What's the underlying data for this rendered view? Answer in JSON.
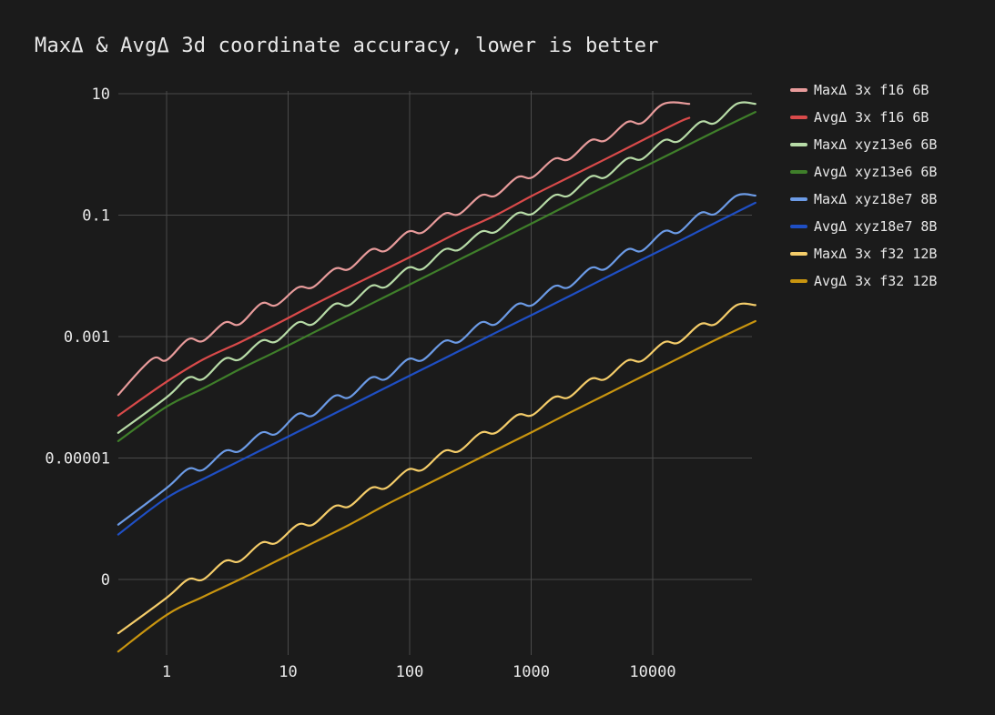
{
  "chart_data": {
    "type": "line",
    "title": "MaxΔ & AvgΔ 3d coordinate accuracy, lower is better",
    "xlabel": "",
    "ylabel": "",
    "x_scale": "log",
    "y_scale": "log",
    "xlim": [
      0.4,
      70000
    ],
    "ylim": [
      1e-08,
      10
    ],
    "x_ticks": [
      {
        "value": 1,
        "label": "1"
      },
      {
        "value": 10,
        "label": "10"
      },
      {
        "value": 100,
        "label": "100"
      },
      {
        "value": 1000,
        "label": "1000"
      },
      {
        "value": 10000,
        "label": "10000"
      }
    ],
    "y_ticks": [
      {
        "value": 10,
        "label": "10"
      },
      {
        "value": 0.1,
        "label": "0.1"
      },
      {
        "value": 0.001,
        "label": "0.001"
      },
      {
        "value": 1e-05,
        "label": "0.00001"
      },
      {
        "value": 1e-07,
        "label": "0"
      }
    ],
    "grid": true,
    "legend_position": "right",
    "series": [
      {
        "name": "MaxΔ 3x f16  6B",
        "color": "#e89b9b",
        "points": [
          [
            0.4,
            0.00011
          ],
          [
            0.75,
            0.00042
          ],
          [
            1,
            0.00041
          ],
          [
            1.5,
            0.0009
          ],
          [
            2,
            0.00085
          ],
          [
            3,
            0.0017
          ],
          [
            4,
            0.0016
          ],
          [
            6,
            0.0035
          ],
          [
            8,
            0.0033
          ],
          [
            12,
            0.0064
          ],
          [
            16,
            0.0065
          ],
          [
            24,
            0.013
          ],
          [
            32,
            0.013
          ],
          [
            48,
            0.027
          ],
          [
            64,
            0.026
          ],
          [
            96,
            0.053
          ],
          [
            128,
            0.052
          ],
          [
            192,
            0.105
          ],
          [
            256,
            0.104
          ],
          [
            384,
            0.21
          ],
          [
            512,
            0.21
          ],
          [
            768,
            0.42
          ],
          [
            1024,
            0.42
          ],
          [
            1536,
            0.84
          ],
          [
            2048,
            0.83
          ],
          [
            3072,
            1.7
          ],
          [
            4096,
            1.7
          ],
          [
            6144,
            3.4
          ],
          [
            8192,
            3.3
          ],
          [
            12288,
            6.8
          ],
          [
            20000,
            6.8
          ]
        ]
      },
      {
        "name": "AvgΔ 3x f16  6B",
        "color": "#d94a4a",
        "points": [
          [
            0.4,
            5e-05
          ],
          [
            1,
            0.00018
          ],
          [
            2,
            0.00042
          ],
          [
            4,
            0.0008
          ],
          [
            8,
            0.0016
          ],
          [
            16,
            0.0033
          ],
          [
            32,
            0.0066
          ],
          [
            64,
            0.013
          ],
          [
            128,
            0.026
          ],
          [
            256,
            0.053
          ],
          [
            512,
            0.1
          ],
          [
            1024,
            0.21
          ],
          [
            2048,
            0.42
          ],
          [
            4096,
            0.84
          ],
          [
            8192,
            1.7
          ],
          [
            16384,
            3.4
          ],
          [
            20000,
            4
          ]
        ]
      },
      {
        "name": "MaxΔ xyz13e6 6B",
        "color": "#b7dba7",
        "points": [
          [
            0.4,
            2.6e-05
          ],
          [
            1,
            0.0001
          ],
          [
            1.5,
            0.00021
          ],
          [
            2,
            0.0002
          ],
          [
            3,
            0.00043
          ],
          [
            4,
            0.00042
          ],
          [
            6,
            0.00085
          ],
          [
            8,
            0.00083
          ],
          [
            12,
            0.0017
          ],
          [
            16,
            0.0016
          ],
          [
            24,
            0.0034
          ],
          [
            32,
            0.0033
          ],
          [
            48,
            0.0068
          ],
          [
            64,
            0.0066
          ],
          [
            96,
            0.0135
          ],
          [
            128,
            0.013
          ],
          [
            192,
            0.027
          ],
          [
            256,
            0.027
          ],
          [
            384,
            0.053
          ],
          [
            512,
            0.053
          ],
          [
            768,
            0.107
          ],
          [
            1024,
            0.105
          ],
          [
            1536,
            0.21
          ],
          [
            2048,
            0.21
          ],
          [
            3072,
            0.43
          ],
          [
            4096,
            0.42
          ],
          [
            6144,
            0.85
          ],
          [
            8192,
            0.84
          ],
          [
            12288,
            1.7
          ],
          [
            16384,
            1.65
          ],
          [
            24576,
            3.4
          ],
          [
            32768,
            3.3
          ],
          [
            49152,
            6.8
          ],
          [
            70000,
            6.8
          ]
        ]
      },
      {
        "name": "AvgΔ xyz13e6 6B",
        "color": "#3f7f2a",
        "points": [
          [
            0.4,
            1.9e-05
          ],
          [
            1,
            7e-05
          ],
          [
            2,
            0.00014
          ],
          [
            4,
            0.00029
          ],
          [
            8,
            0.00057
          ],
          [
            16,
            0.00115
          ],
          [
            32,
            0.0023
          ],
          [
            64,
            0.0046
          ],
          [
            128,
            0.0092
          ],
          [
            256,
            0.0185
          ],
          [
            512,
            0.037
          ],
          [
            1024,
            0.074
          ],
          [
            2048,
            0.15
          ],
          [
            4096,
            0.3
          ],
          [
            8192,
            0.6
          ],
          [
            16384,
            1.2
          ],
          [
            32768,
            2.4
          ],
          [
            70000,
            5
          ]
        ]
      },
      {
        "name": "MaxΔ xyz18e7 8B",
        "color": "#6c9be6",
        "points": [
          [
            0.4,
            8e-07
          ],
          [
            1,
            3.2e-06
          ],
          [
            1.5,
            6.6e-06
          ],
          [
            2,
            6.4e-06
          ],
          [
            3,
            1.3e-05
          ],
          [
            4,
            1.3e-05
          ],
          [
            6,
            2.6e-05
          ],
          [
            8,
            2.5e-05
          ],
          [
            12,
            5.3e-05
          ],
          [
            16,
            5e-05
          ],
          [
            24,
            0.000105
          ],
          [
            32,
            0.0001
          ],
          [
            48,
            0.00021
          ],
          [
            64,
            0.0002
          ],
          [
            96,
            0.00042
          ],
          [
            128,
            0.00041
          ],
          [
            192,
            0.00084
          ],
          [
            256,
            0.00082
          ],
          [
            384,
            0.0017
          ],
          [
            512,
            0.0016
          ],
          [
            768,
            0.0034
          ],
          [
            1024,
            0.0033
          ],
          [
            1536,
            0.0067
          ],
          [
            2048,
            0.0065
          ],
          [
            3072,
            0.0134
          ],
          [
            4096,
            0.013
          ],
          [
            6144,
            0.027
          ],
          [
            8192,
            0.026
          ],
          [
            12288,
            0.054
          ],
          [
            16384,
            0.052
          ],
          [
            24576,
            0.108
          ],
          [
            32768,
            0.105
          ],
          [
            49152,
            0.21
          ],
          [
            70000,
            0.21
          ]
        ]
      },
      {
        "name": "AvgΔ xyz18e7 8B",
        "color": "#1f4fc4",
        "points": [
          [
            0.4,
            5.5e-07
          ],
          [
            1,
            2.2e-06
          ],
          [
            2,
            4.5e-06
          ],
          [
            4,
            9e-06
          ],
          [
            8,
            1.8e-05
          ],
          [
            16,
            3.6e-05
          ],
          [
            32,
            7.2e-05
          ],
          [
            64,
            0.000145
          ],
          [
            128,
            0.00029
          ],
          [
            256,
            0.00058
          ],
          [
            512,
            0.00116
          ],
          [
            1024,
            0.0023
          ],
          [
            2048,
            0.0046
          ],
          [
            4096,
            0.0093
          ],
          [
            8192,
            0.0186
          ],
          [
            16384,
            0.037
          ],
          [
            32768,
            0.075
          ],
          [
            70000,
            0.16
          ]
        ]
      },
      {
        "name": "MaxΔ 3x f32  12B",
        "color": "#f5cd6a",
        "points": [
          [
            0.4,
            1.3e-08
          ],
          [
            1,
            5e-08
          ],
          [
            1.5,
            1e-07
          ],
          [
            2,
            1e-07
          ],
          [
            3,
            2e-07
          ],
          [
            4,
            2e-07
          ],
          [
            6,
            4e-07
          ],
          [
            8,
            4e-07
          ],
          [
            12,
            8e-07
          ],
          [
            16,
            8e-07
          ],
          [
            24,
            1.6e-06
          ],
          [
            32,
            1.6e-06
          ],
          [
            48,
            3.2e-06
          ],
          [
            64,
            3.2e-06
          ],
          [
            96,
            6.4e-06
          ],
          [
            128,
            6.4e-06
          ],
          [
            192,
            1.3e-05
          ],
          [
            256,
            1.3e-05
          ],
          [
            384,
            2.6e-05
          ],
          [
            512,
            2.6e-05
          ],
          [
            768,
            5.1e-05
          ],
          [
            1024,
            5.1e-05
          ],
          [
            1536,
            0.0001
          ],
          [
            2048,
            0.0001
          ],
          [
            3072,
            0.0002
          ],
          [
            4096,
            0.0002
          ],
          [
            6144,
            0.0004
          ],
          [
            8192,
            0.0004
          ],
          [
            12288,
            0.0008
          ],
          [
            16384,
            0.0008
          ],
          [
            24576,
            0.0016
          ],
          [
            32768,
            0.0016
          ],
          [
            49152,
            0.0033
          ],
          [
            70000,
            0.0033
          ]
        ]
      },
      {
        "name": "AvgΔ 3x f32  12B",
        "color": "#c9950f",
        "points": [
          [
            0.4,
            6.5e-09
          ],
          [
            1,
            2.6e-08
          ],
          [
            2,
            5.2e-08
          ],
          [
            4,
            1e-07
          ],
          [
            8,
            2e-07
          ],
          [
            16,
            4e-07
          ],
          [
            32,
            8e-07
          ],
          [
            64,
            1.7e-06
          ],
          [
            128,
            3.4e-06
          ],
          [
            256,
            6.8e-06
          ],
          [
            512,
            1.36e-05
          ],
          [
            1024,
            2.7e-05
          ],
          [
            2048,
            5.5e-05
          ],
          [
            4096,
            0.00011
          ],
          [
            8192,
            0.00022
          ],
          [
            16384,
            0.00044
          ],
          [
            32768,
            0.00088
          ],
          [
            70000,
            0.0018
          ]
        ]
      }
    ]
  }
}
